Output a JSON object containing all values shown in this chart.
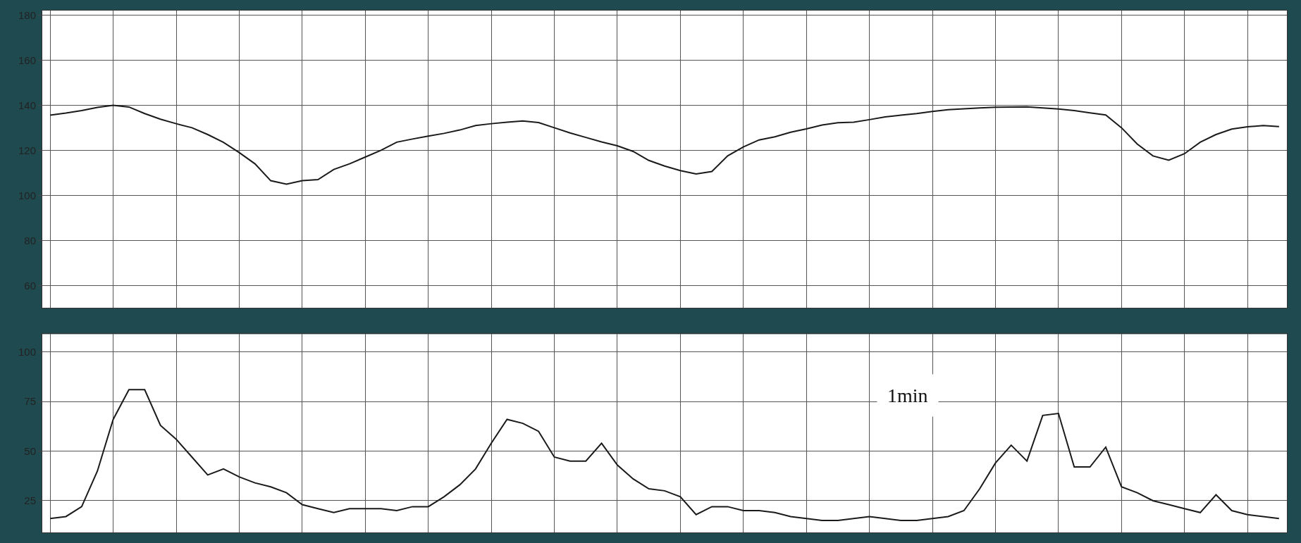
{
  "chart_data": [
    {
      "type": "line",
      "categories": [
        null,
        null,
        null,
        null,
        null,
        null,
        null,
        null,
        null,
        null,
        null,
        null,
        null,
        null,
        null,
        null,
        null,
        null,
        null,
        null,
        null,
        null,
        null,
        null,
        null,
        null,
        null,
        null,
        null,
        null,
        null,
        null,
        null,
        null,
        null,
        null,
        null,
        null,
        null,
        null,
        null,
        null,
        null,
        null,
        null,
        null,
        null,
        null,
        null,
        null,
        null,
        null,
        null,
        null,
        null,
        null,
        null,
        null,
        null,
        null,
        null,
        null,
        null,
        null,
        null,
        null,
        null,
        null,
        null,
        null,
        null,
        null,
        null,
        null,
        null,
        null,
        null,
        null,
        null
      ],
      "values": [
        135.6,
        136.5,
        137.6,
        139,
        140,
        139.2,
        136.3,
        133.8,
        131.8,
        130,
        127,
        123.5,
        119,
        114,
        106.5,
        105,
        106.5,
        107,
        111.5,
        114,
        117,
        120,
        123.6,
        125,
        126.3,
        127.5,
        129,
        131,
        131.8,
        132.5,
        133,
        132.3,
        130,
        127.7,
        125.7,
        123.7,
        122,
        119.5,
        115.5,
        113,
        111,
        109.5,
        110.6,
        117.5,
        121.5,
        124.6,
        126,
        128,
        129.5,
        131.2,
        132.2,
        132.5,
        133.6,
        134.8,
        135.6,
        136.3,
        137.2,
        138,
        138.4,
        138.8,
        139.1,
        139.2,
        139.3,
        138.8,
        138.3,
        137.6,
        136.6,
        135.7,
        130,
        122.8,
        117.5,
        115.6,
        118.5,
        123.6,
        127,
        129.4,
        130.4,
        131,
        130.5
      ],
      "color": "#1a1a1a",
      "ylim": [
        50,
        182
      ],
      "yticks": [
        60,
        80,
        100,
        120,
        140,
        160,
        180
      ],
      "grid": true,
      "tick_labels": "y"
    },
    {
      "type": "line",
      "categories": [
        null,
        null,
        null,
        null,
        null,
        null,
        null,
        null,
        null,
        null,
        null,
        null,
        null,
        null,
        null,
        null,
        null,
        null,
        null,
        null,
        null,
        null,
        null,
        null,
        null,
        null,
        null,
        null,
        null,
        null,
        null,
        null,
        null,
        null,
        null,
        null,
        null,
        null,
        null,
        null,
        null,
        null,
        null,
        null,
        null,
        null,
        null,
        null,
        null,
        null,
        null,
        null,
        null,
        null,
        null,
        null,
        null,
        null,
        null,
        null,
        null,
        null,
        null,
        null,
        null,
        null,
        null,
        null,
        null,
        null,
        null,
        null,
        null,
        null,
        null,
        null,
        null,
        null,
        null
      ],
      "values": [
        16,
        17,
        22,
        40,
        66,
        81,
        81,
        63,
        56,
        47,
        38,
        41,
        37,
        34,
        32,
        29,
        23,
        21,
        19,
        21,
        21,
        21,
        20,
        22,
        22,
        27,
        33,
        41,
        54,
        66,
        64,
        60,
        47,
        45,
        45,
        54,
        43,
        36,
        31,
        30,
        27,
        18,
        22,
        22,
        20,
        20,
        19,
        17,
        16,
        15,
        15,
        16,
        17,
        16,
        15,
        15,
        16,
        17,
        20,
        31,
        44,
        53,
        45,
        68,
        69,
        42,
        42,
        52,
        32,
        29,
        25,
        23,
        21,
        19,
        28,
        20,
        18,
        17,
        16
      ],
      "color": "#1a1a1a",
      "ylim": [
        9,
        109
      ],
      "yticks": [
        25,
        50,
        75,
        100
      ],
      "grid": true,
      "tick_labels": "y",
      "annotations": [
        "1min"
      ]
    }
  ]
}
